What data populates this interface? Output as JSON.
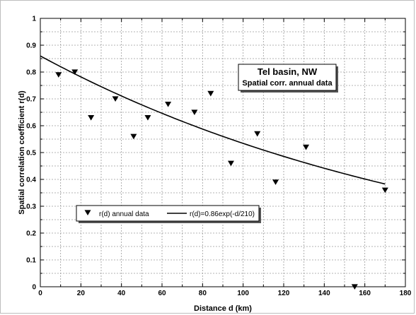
{
  "chart_data": {
    "type": "scatter",
    "annotation": {
      "title": "Tel basin, NW",
      "subtitle": "Spatial corr. annual data"
    },
    "xlabel": "Distance d (km)",
    "ylabel": "Spatial correlation coefficient r(d)",
    "xlim": [
      0,
      180
    ],
    "ylim": [
      0,
      1
    ],
    "x_ticks": [
      "0",
      "20",
      "40",
      "60",
      "80",
      "100",
      "120",
      "140",
      "160",
      "180"
    ],
    "y_ticks": [
      "0",
      "0.1",
      "0.2",
      "0.3",
      "0.4",
      "0.5",
      "0.6",
      "0.7",
      "0.8",
      "0.9",
      "1"
    ],
    "grid": true,
    "legend_position": "bottom-left",
    "series": [
      {
        "name": "r(d) annual data",
        "marker": "triangle-down",
        "x": [
          9,
          17,
          25,
          37,
          46,
          53,
          63,
          76,
          84,
          94,
          107,
          116,
          131,
          155,
          170
        ],
        "y": [
          0.79,
          0.8,
          0.63,
          0.7,
          0.56,
          0.63,
          0.68,
          0.65,
          0.72,
          0.46,
          0.57,
          0.39,
          0.52,
          0.0,
          0.36
        ]
      },
      {
        "name": "r(d)=0.86exp(-d/210)",
        "type": "line",
        "function": {
          "a": 0.86,
          "b": 210
        },
        "x_range": [
          0,
          170
        ]
      }
    ],
    "colors": {
      "markers": "#000000",
      "line": "#000000",
      "grid": "#9a9a9a"
    }
  }
}
